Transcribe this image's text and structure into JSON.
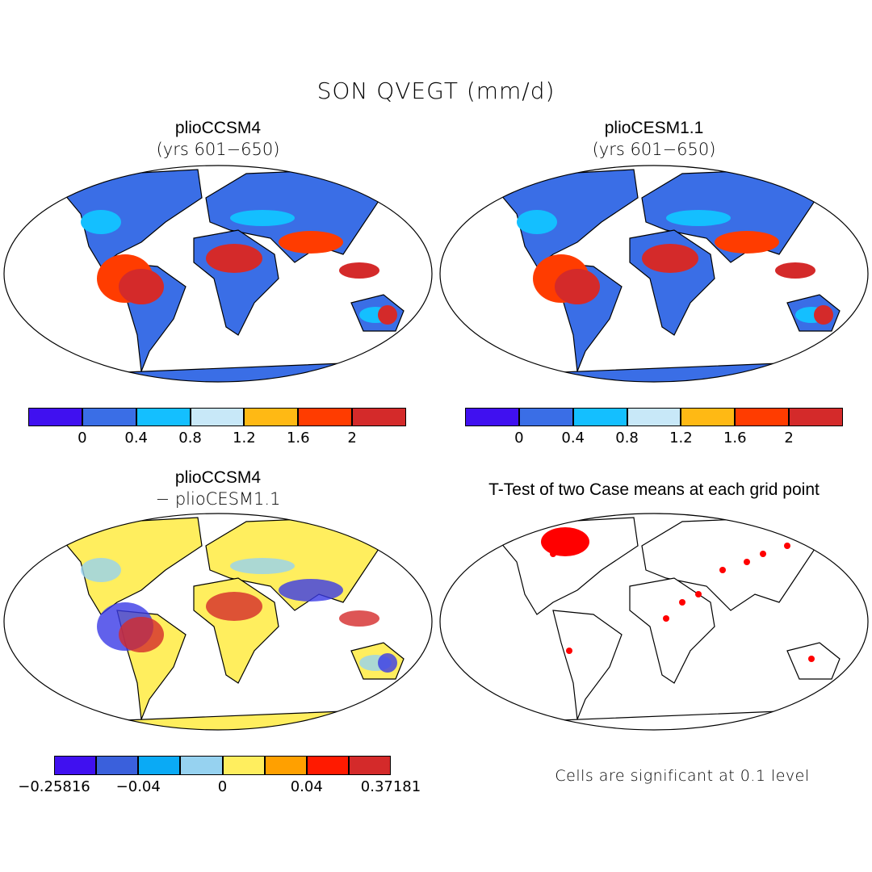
{
  "title": "SON QVEGT (mm/d)",
  "panels": [
    {
      "title": "plioCCSM4",
      "subtitle": "(yrs 601−650)",
      "base": "#3a6ee6",
      "accent": "#d42a2a",
      "mid": "#ff3c00",
      "light": "#14bfff"
    },
    {
      "title": "plioCESM1.1",
      "subtitle": "(yrs 601−650)",
      "base": "#3a6ee6",
      "accent": "#d42a2a",
      "mid": "#ff3c00",
      "light": "#14bfff"
    },
    {
      "title": "plioCCSM4",
      "subtitle": "− plioCESM1.1",
      "base": "#ffee5e",
      "accent": "#d42a2a",
      "mid": "#ff1a00",
      "light": "#96d2f0"
    },
    {
      "title": "T-Test of two Case means at each grid point",
      "base": "#ffffff",
      "accent": "#ff0000",
      "mid": "#ff0000",
      "light": "#ffffff"
    }
  ],
  "colorbars": [
    {
      "colors": [
        "#4010f0",
        "#3a6ee6",
        "#14bfff",
        "#c8e8f8",
        "#ffb914",
        "#ff3c00",
        "#d42a2a"
      ],
      "labels": [
        "0",
        "0.4",
        "0.8",
        "1.2",
        "1.6",
        "2"
      ]
    },
    {
      "colors": [
        "#4010f0",
        "#3a6ee6",
        "#14bfff",
        "#c8e8f8",
        "#ffb914",
        "#ff3c00",
        "#d42a2a"
      ],
      "labels": [
        "0",
        "0.4",
        "0.8",
        "1.2",
        "1.6",
        "2"
      ]
    },
    {
      "colors": [
        "#4010f0",
        "#3a60dc",
        "#0aaaf5",
        "#96d2f0",
        "#ffee5e",
        "#ffa000",
        "#ff1a00",
        "#d42a2a"
      ],
      "labels": [
        "−0.25816",
        "−0.04",
        "0",
        "0.04",
        "0.37181"
      ]
    }
  ],
  "note": "Cells are significant at 0.1 level"
}
